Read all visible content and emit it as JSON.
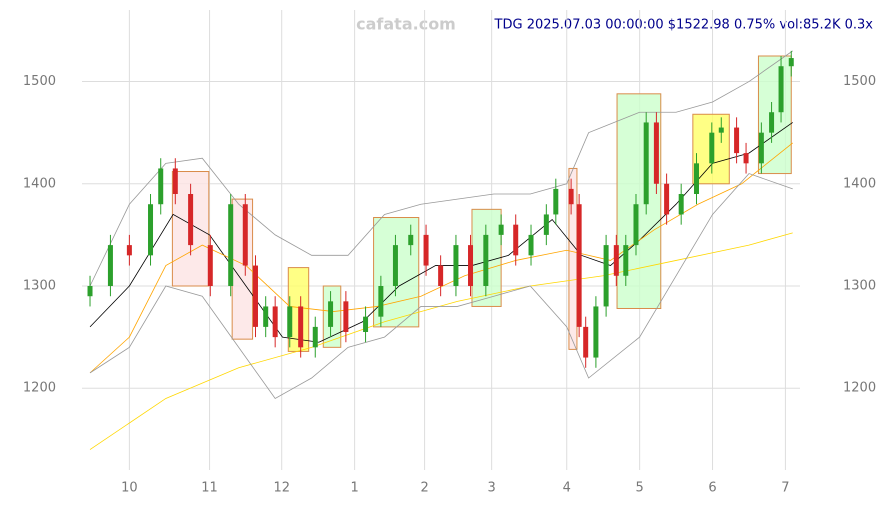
{
  "chart_data": {
    "type": "candlestick",
    "title": "TDG 2025.07.03 00:00:00 $1522.98 0.75% vol:85.2K 0.3x",
    "watermark": "cafata.com",
    "xlim": [
      0.35,
      10.2
    ],
    "xticks": [
      {
        "value": 1,
        "label": "10"
      },
      {
        "value": 2.1,
        "label": "11"
      },
      {
        "value": 3.09,
        "label": "12"
      },
      {
        "value": 4.09,
        "label": "1"
      },
      {
        "value": 5.05,
        "label": "2"
      },
      {
        "value": 5.97,
        "label": "3"
      },
      {
        "value": 7.0,
        "label": "4"
      },
      {
        "value": 8.0,
        "label": "5"
      },
      {
        "value": 9.0,
        "label": "6"
      },
      {
        "value": 10.0,
        "label": "7"
      }
    ],
    "ylim": [
      1120,
      1570
    ],
    "yticks": [
      1200,
      1300,
      1400,
      1500
    ],
    "grid": true,
    "up_color": "#2ca02c",
    "down_color": "#d62728",
    "x": [
      0.46,
      0.74,
      1.0,
      1.29,
      1.43,
      1.63,
      1.84,
      2.11,
      2.39,
      2.59,
      2.73,
      2.87,
      3.0,
      3.2,
      3.35,
      3.55,
      3.76,
      3.97,
      4.24,
      4.45,
      4.65,
      4.86,
      5.07,
      5.27,
      5.48,
      5.68,
      5.89,
      6.1,
      6.3,
      6.51,
      6.72,
      6.85,
      7.06,
      7.17,
      7.26,
      7.4,
      7.54,
      7.68,
      7.81,
      7.95,
      8.09,
      8.23,
      8.37,
      8.57,
      8.78,
      8.99,
      9.12,
      9.33,
      9.46,
      9.67,
      9.81,
      9.94,
      10.08
    ],
    "open": [
      1290,
      1300,
      1340,
      1330,
      1380,
      1415,
      1390,
      1340,
      1300,
      1380,
      1320,
      1260,
      1280,
      1250,
      1280,
      1240,
      1260,
      1285,
      1255,
      1270,
      1300,
      1340,
      1350,
      1320,
      1300,
      1340,
      1300,
      1350,
      1360,
      1330,
      1350,
      1370,
      1395,
      1380,
      1260,
      1230,
      1280,
      1340,
      1310,
      1340,
      1380,
      1460,
      1400,
      1370,
      1390,
      1420,
      1450,
      1455,
      1430,
      1420,
      1450,
      1470,
      1515
    ],
    "high": [
      1310,
      1350,
      1350,
      1390,
      1425,
      1425,
      1400,
      1350,
      1390,
      1390,
      1330,
      1290,
      1290,
      1290,
      1290,
      1270,
      1295,
      1295,
      1280,
      1310,
      1350,
      1360,
      1360,
      1330,
      1350,
      1350,
      1360,
      1370,
      1370,
      1360,
      1380,
      1405,
      1405,
      1390,
      1270,
      1290,
      1350,
      1350,
      1350,
      1390,
      1470,
      1470,
      1410,
      1400,
      1430,
      1460,
      1465,
      1465,
      1440,
      1460,
      1480,
      1525,
      1530
    ],
    "low": [
      1280,
      1290,
      1320,
      1320,
      1370,
      1380,
      1330,
      1290,
      1290,
      1310,
      1250,
      1250,
      1240,
      1240,
      1230,
      1230,
      1250,
      1245,
      1245,
      1260,
      1290,
      1330,
      1310,
      1290,
      1290,
      1290,
      1290,
      1340,
      1320,
      1320,
      1340,
      1360,
      1370,
      1250,
      1220,
      1220,
      1270,
      1300,
      1300,
      1330,
      1370,
      1390,
      1360,
      1360,
      1380,
      1410,
      1440,
      1420,
      1410,
      1410,
      1440,
      1460,
      1505
    ],
    "close": [
      1300,
      1340,
      1330,
      1380,
      1415,
      1390,
      1340,
      1300,
      1380,
      1320,
      1260,
      1280,
      1250,
      1280,
      1240,
      1260,
      1285,
      1255,
      1270,
      1300,
      1340,
      1350,
      1320,
      1300,
      1340,
      1300,
      1350,
      1360,
      1330,
      1350,
      1370,
      1395,
      1380,
      1260,
      1230,
      1280,
      1340,
      1310,
      1340,
      1380,
      1460,
      1400,
      1370,
      1390,
      1420,
      1450,
      1455,
      1430,
      1420,
      1450,
      1470,
      1515,
      1522.98
    ],
    "boxes": [
      {
        "color": "#fde4e4",
        "x": [
          1.59,
          2.09
        ],
        "y": [
          1300,
          1412
        ]
      },
      {
        "color": "#fde4e4",
        "x": [
          2.41,
          2.69
        ],
        "y": [
          1248,
          1385
        ]
      },
      {
        "color": "#ffff66",
        "x": [
          3.18,
          3.46
        ],
        "y": [
          1236,
          1318
        ]
      },
      {
        "color": "#ccffcc",
        "x": [
          3.66,
          3.9
        ],
        "y": [
          1240,
          1300
        ]
      },
      {
        "color": "#ccffcc",
        "x": [
          4.35,
          4.97
        ],
        "y": [
          1260,
          1367
        ]
      },
      {
        "color": "#ccffcc",
        "x": [
          5.7,
          6.1
        ],
        "y": [
          1280,
          1375
        ]
      },
      {
        "color": "#fde4e4",
        "x": [
          7.03,
          7.14
        ],
        "y": [
          1238,
          1415
        ]
      },
      {
        "color": "#ccffcc",
        "x": [
          7.69,
          8.29
        ],
        "y": [
          1278,
          1488
        ]
      },
      {
        "color": "#ffff66",
        "x": [
          8.73,
          9.23
        ],
        "y": [
          1400,
          1468
        ]
      },
      {
        "color": "#ccffcc",
        "x": [
          9.63,
          10.08
        ],
        "y": [
          1410,
          1525
        ]
      }
    ],
    "lines": [
      {
        "color": "#000000",
        "x": [
          0.46,
          1.0,
          1.6,
          2.1,
          2.6,
          3.1,
          3.6,
          4.2,
          4.7,
          5.2,
          5.7,
          6.2,
          6.8,
          7.2,
          7.6,
          8.0,
          8.5,
          9.0,
          9.5,
          10.1
        ],
        "values": [
          1260,
          1300,
          1370,
          1350,
          1300,
          1250,
          1245,
          1265,
          1300,
          1320,
          1320,
          1330,
          1365,
          1330,
          1320,
          1345,
          1380,
          1420,
          1430,
          1460
        ]
      },
      {
        "color": "#ffa500",
        "x": [
          0.46,
          1.0,
          1.5,
          2.0,
          2.6,
          3.2,
          3.8,
          4.4,
          5.0,
          5.6,
          6.3,
          7.0,
          7.6,
          8.2,
          8.8,
          9.4,
          10.1
        ],
        "values": [
          1215,
          1250,
          1320,
          1340,
          1320,
          1280,
          1275,
          1280,
          1290,
          1310,
          1325,
          1335,
          1325,
          1355,
          1380,
          1400,
          1440
        ]
      },
      {
        "color": "#ffd700",
        "x": [
          0.46,
          1.5,
          2.5,
          3.5,
          4.5,
          5.5,
          6.5,
          7.5,
          8.5,
          9.5,
          10.1
        ],
        "values": [
          1140,
          1190,
          1220,
          1240,
          1265,
          1285,
          1300,
          1310,
          1325,
          1340,
          1352
        ]
      },
      {
        "color": "#999999",
        "x": [
          0.46,
          1.0,
          1.5,
          2.0,
          2.5,
          3.0,
          3.5,
          4.0,
          4.5,
          5.0,
          5.5,
          6.0,
          6.5,
          7.0,
          7.3,
          8.0,
          8.5,
          9.0,
          9.5,
          10.1
        ],
        "values": [
          1300,
          1380,
          1420,
          1425,
          1380,
          1350,
          1330,
          1330,
          1370,
          1380,
          1385,
          1390,
          1390,
          1400,
          1450,
          1470,
          1470,
          1480,
          1500,
          1530
        ]
      },
      {
        "color": "#999999",
        "x": [
          0.46,
          1.0,
          1.5,
          2.0,
          2.5,
          3.0,
          3.5,
          4.0,
          4.5,
          5.0,
          5.5,
          6.0,
          6.5,
          7.0,
          7.3,
          8.0,
          8.5,
          9.0,
          9.5,
          10.1
        ],
        "values": [
          1215,
          1240,
          1300,
          1290,
          1240,
          1190,
          1210,
          1240,
          1250,
          1280,
          1280,
          1290,
          1300,
          1260,
          1210,
          1250,
          1310,
          1370,
          1410,
          1395
        ]
      }
    ]
  }
}
